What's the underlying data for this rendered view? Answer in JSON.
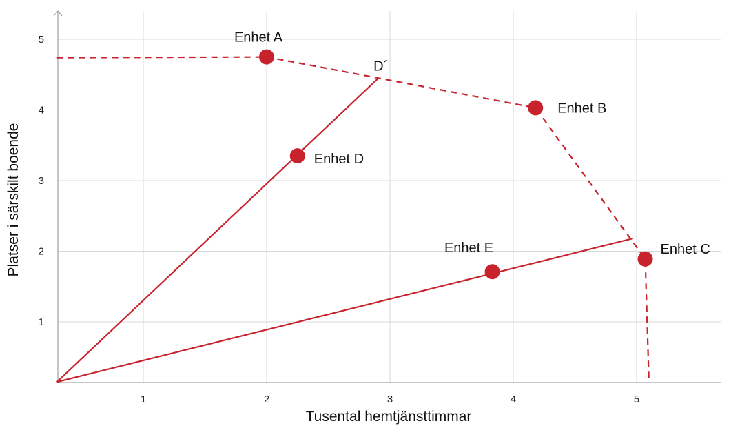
{
  "chart_data": {
    "type": "scatter",
    "xlabel": "Tusental hemtjänsttimmar",
    "ylabel": "Platser i särskilt boende",
    "xlim": [
      0.3,
      5.7
    ],
    "ylim": [
      0.15,
      5.4
    ],
    "xticks": [
      1,
      2,
      3,
      4,
      5
    ],
    "yticks": [
      1,
      2,
      3,
      4,
      5
    ],
    "grid": true,
    "colors": {
      "accent": "#c8232c",
      "grid": "#d9d9d9",
      "axis": "#8c8c8c"
    },
    "points": [
      {
        "label": "Enhet A",
        "x": 2.0,
        "y": 4.75
      },
      {
        "label": "Enhet B",
        "x": 4.18,
        "y": 4.03
      },
      {
        "label": "Enhet C",
        "x": 5.07,
        "y": 1.89
      },
      {
        "label": "Enhet D",
        "x": 2.25,
        "y": 3.35
      },
      {
        "label": "Enhet E",
        "x": 3.83,
        "y": 1.71
      }
    ],
    "frontier": [
      {
        "x": 0.3,
        "y": 4.74
      },
      {
        "x": 2.0,
        "y": 4.75
      },
      {
        "x": 4.18,
        "y": 4.03
      },
      {
        "x": 5.07,
        "y": 1.89
      },
      {
        "x": 5.1,
        "y": 0.15
      }
    ],
    "rays": [
      {
        "from": {
          "x": 0.3,
          "y": 0.15
        },
        "to": {
          "x": 2.9,
          "y": 4.44
        }
      },
      {
        "from": {
          "x": 0.3,
          "y": 0.15
        },
        "to": {
          "x": 4.97,
          "y": 2.18
        }
      }
    ],
    "annotations": [
      {
        "text": "D´",
        "x": 2.9,
        "y": 4.44
      }
    ]
  }
}
